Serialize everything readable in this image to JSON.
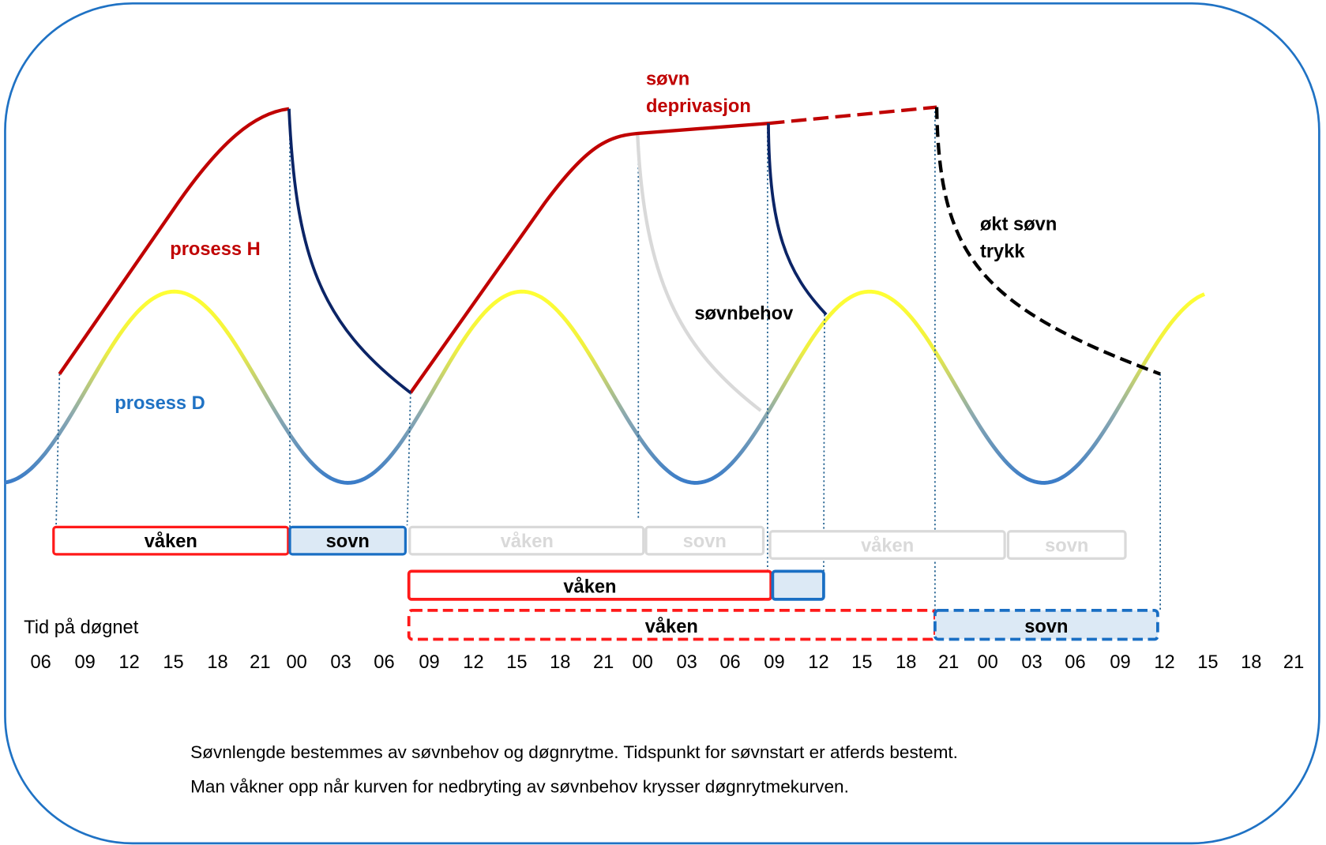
{
  "colors": {
    "border": "#1f72c4",
    "process_h": "#c00000",
    "process_d_top": "#ffff33",
    "process_d_bottom": "#3a7cc8",
    "sleep_decay": "#0b2466",
    "ghost": "#d9d9d9",
    "awake_box": "#ff1a1a",
    "sleep_box": "#1a6fc4",
    "sleep_fill": "#dce9f5"
  },
  "labels": {
    "process_h": "prosess H",
    "process_d": "prosess D",
    "deprivation_1": "søvn",
    "deprivation_2": "deprivasjon",
    "sleep_need": "søvnbehov",
    "pressure_1": "økt søvn",
    "pressure_2": "trykk"
  },
  "bars": {
    "row1": [
      "våken",
      "sovn"
    ],
    "row1_ghost": [
      "våken",
      "sovn",
      "våken",
      "sovn"
    ],
    "row2": [
      "våken"
    ],
    "row3": [
      "våken",
      "sovn"
    ]
  },
  "axis": {
    "title": "Tid på døgnet",
    "ticks": [
      "06",
      "09",
      "12",
      "15",
      "18",
      "21",
      "00",
      "03",
      "06",
      "09",
      "12",
      "15",
      "18",
      "21",
      "00",
      "03",
      "06",
      "09",
      "12",
      "15",
      "18",
      "21",
      "00",
      "03",
      "06",
      "09",
      "12",
      "15",
      "18",
      "21"
    ]
  },
  "caption": {
    "line1": "Søvnlengde bestemmes av søvnbehov og døgnrytme. Tidspunkt for søvnstart er atferds bestemt.",
    "line2": "Man våkner opp når kurven for nedbryting av søvnbehov krysser døgnrytmekurven."
  }
}
